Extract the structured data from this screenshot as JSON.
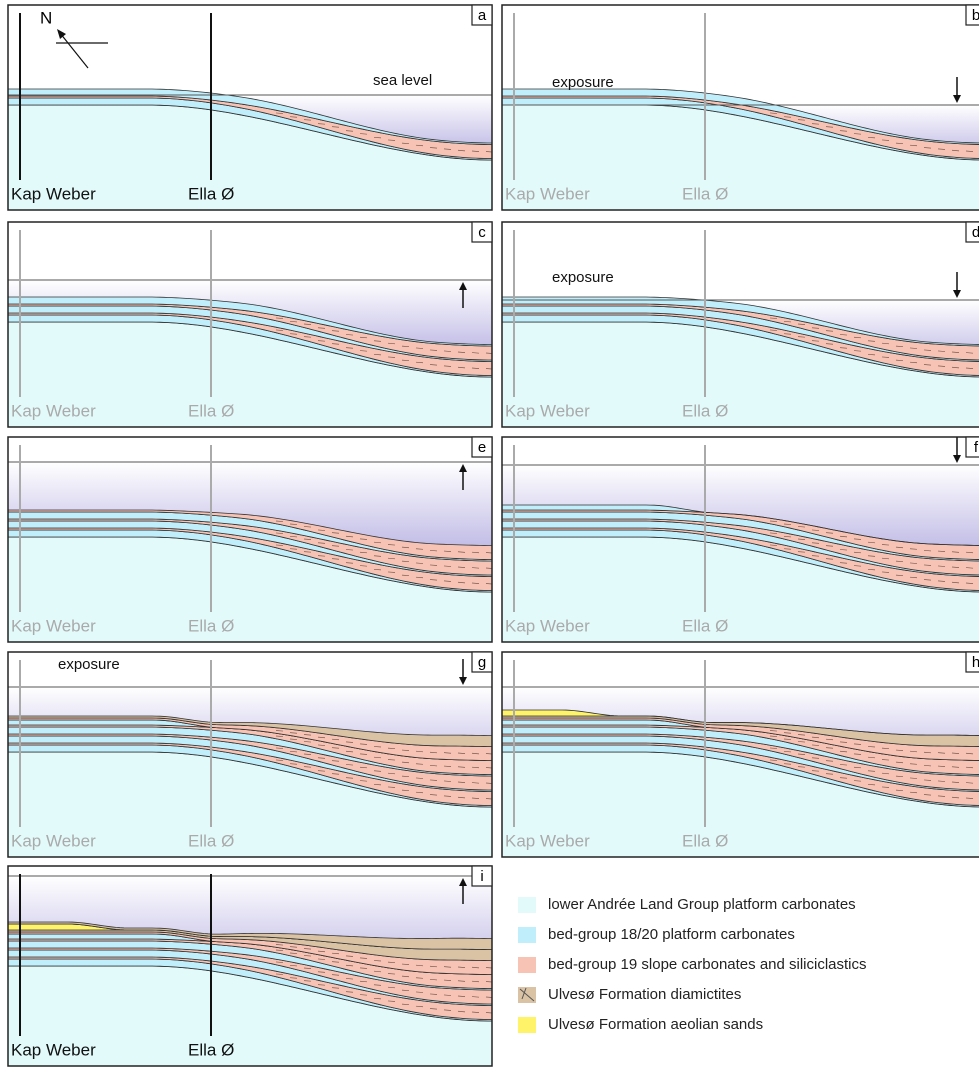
{
  "compass": "N",
  "panels": [
    {
      "letter": "a",
      "sites": [
        "Kap Weber",
        "Ella Ø"
      ],
      "note": "sea level"
    },
    {
      "letter": "b",
      "sites": [
        "Kap Weber",
        "Ella Ø"
      ],
      "note": "exposure"
    },
    {
      "letter": "c",
      "sites": [
        "Kap Weber",
        "Ella Ø"
      ]
    },
    {
      "letter": "d",
      "sites": [
        "Kap Weber",
        "Ella Ø"
      ],
      "note": "exposure"
    },
    {
      "letter": "e",
      "sites": [
        "Kap Weber",
        "Ella Ø"
      ]
    },
    {
      "letter": "f",
      "sites": [
        "Kap Weber",
        "Ella Ø"
      ]
    },
    {
      "letter": "g",
      "sites": [
        "Kap Weber",
        "Ella Ø"
      ],
      "note": "exposure"
    },
    {
      "letter": "h",
      "sites": [
        "Kap Weber",
        "Ella Ø"
      ]
    },
    {
      "letter": "i",
      "sites": [
        "Kap Weber",
        "Ella Ø"
      ]
    }
  ],
  "legend": [
    "lower Andrée Land Group platform carbonates",
    "bed-group 18/20 platform carbonates",
    "bed-group 19 slope carbonates and siliciclastics",
    "Ulvesø Formation diamictites",
    "Ulvesø Formation aeolian sands"
  ]
}
